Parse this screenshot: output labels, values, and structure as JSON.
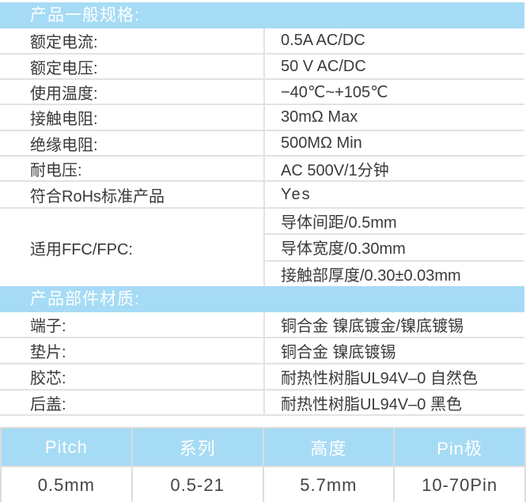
{
  "general": {
    "title": "产品一般规格:",
    "rows": [
      {
        "label": "额定电流:",
        "value": "0.5A AC/DC"
      },
      {
        "label": "额定电压:",
        "value": "50 V  AC/DC"
      },
      {
        "label": "使用温度:",
        "value": "−40℃~+105℃"
      },
      {
        "label": "接触电阻:",
        "value": "30mΩ Max"
      },
      {
        "label": "绝缘电阻:",
        "value": "500MΩ Min"
      },
      {
        "label": "耐电压:",
        "value": "AC 500V/1分钟"
      },
      {
        "label": "符合RoHs标准产品",
        "value": "Yes"
      }
    ],
    "ffc": {
      "label": "适用FFC/FPC:",
      "values": [
        "导体间距/0.5mm",
        "导体宽度/0.30mm",
        "接触部厚度/0.30±0.03mm"
      ]
    }
  },
  "materials": {
    "title": "产品部件材质:",
    "rows": [
      {
        "label": "端子:",
        "value": "铜合金 镍底镀金/镍底镀锡"
      },
      {
        "label": "垫片:",
        "value": "铜合金 镍底镀锡"
      },
      {
        "label": "胶芯:",
        "value": "耐热性树脂UL94V–0 自然色"
      },
      {
        "label": "后盖:",
        "value": "耐热性树脂UL94V–0 黑色"
      }
    ]
  },
  "summary": {
    "headers": [
      "Pitch",
      "系列",
      "高度",
      "Pin极"
    ],
    "values": [
      "0.5mm",
      "0.5-21",
      "5.7mm",
      "10-70Pin"
    ]
  },
  "colors": {
    "header_bg": "#a6dbf5",
    "border": "#e2e2e2"
  }
}
